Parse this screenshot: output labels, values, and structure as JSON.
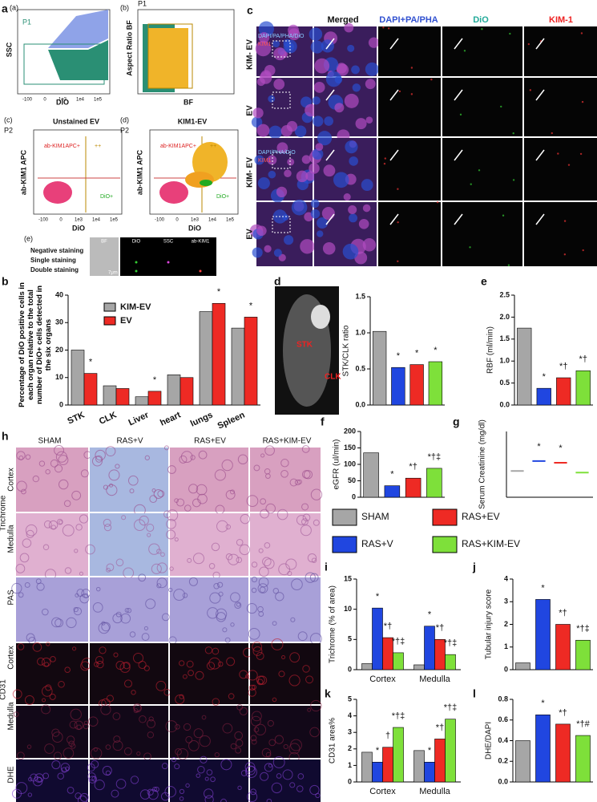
{
  "figure": {
    "panel_letters": [
      "a",
      "b",
      "c",
      "d",
      "e",
      "f",
      "g",
      "h",
      "i",
      "j",
      "k",
      "l"
    ],
    "flow": {
      "sub": [
        "(a)",
        "(b)",
        "(c)",
        "(d)",
        "(e)"
      ],
      "p1": "P1",
      "p2": "P2",
      "ssc": "SSC",
      "dio": "DiO",
      "aspect": "Aspect Ratio BF",
      "bf": "BF",
      "unstained": "Unstained EV",
      "kim1ev": "KIM1-EV",
      "apc": "ab-KIM1 APC",
      "apcpos": "ab-KIM1APC+",
      "dipos": "DiO+",
      "pp": "++",
      "axis_ticks": [
        "-100",
        "0",
        "1e3",
        "1e4",
        "1e5"
      ]
    },
    "staining": {
      "rows": [
        "Negative staining",
        "Single staining",
        "Double staining"
      ],
      "cols": [
        "BF",
        "DiO",
        "SSC",
        "ab-KIM1"
      ],
      "scale": "7μm"
    },
    "panel_c": {
      "cols": [
        "Merged",
        "DAPI+PA/PHA",
        "DiO",
        "KIM-1"
      ],
      "rows": [
        "KIM- EV",
        "EV",
        "KIM- EV",
        "EV"
      ],
      "inset1": "DAPI/PA/PHA/DiO",
      "inset2": "DAPI/PHA/DiO",
      "inset_kim": "KIM1"
    },
    "panel_d_image": {
      "stk": "STK",
      "clk": "CLK"
    },
    "panel_h": {
      "cols": [
        "SHAM",
        "RAS+V",
        "RAS+EV",
        "RAS+KIM-EV"
      ],
      "rows": [
        "Cortex",
        "Medulla",
        "PAS",
        "Cortex",
        "Medulla",
        "DHE"
      ],
      "groups": [
        "Trichrome",
        "CD31"
      ]
    },
    "legend": [
      {
        "name": "SHAM",
        "color": "#a6a6a6"
      },
      {
        "name": "RAS+EV",
        "color": "#ee2a24"
      },
      {
        "name": "RAS+V",
        "color": "#2046e0"
      },
      {
        "name": "RAS+KIM-EV",
        "color": "#7ee03a"
      }
    ]
  },
  "chart_data": [
    {
      "type": "grouped_bar",
      "y_label": "Percentage of DiO positive cells in each organ relative to the total number of DiO+ cells detected in the six organs",
      "categories": [
        "STK",
        "CLK",
        "Liver",
        "heart",
        "lungs",
        "Spleen"
      ],
      "series": [
        {
          "name": "KIM-EV",
          "color": "#a6a6a6",
          "values": [
            20,
            7,
            3,
            11,
            34,
            28
          ]
        },
        {
          "name": "EV",
          "color": "#ee2a24",
          "values": [
            11.5,
            6,
            5,
            10,
            37,
            32
          ],
          "annotations": [
            "*",
            null,
            "*",
            null,
            "*",
            "*"
          ]
        }
      ],
      "ylim": [
        0,
        40
      ],
      "yticks": [
        0,
        10,
        20,
        30,
        40
      ]
    },
    {
      "type": "bar",
      "y_label": "STK/CLK ratio",
      "values": [
        1.02,
        0.52,
        0.56,
        0.6
      ],
      "colors": [
        "#a6a6a6",
        "#2046e0",
        "#ee2a24",
        "#7ee03a"
      ],
      "annotations": [
        null,
        "*",
        "*",
        "*"
      ],
      "ylim": [
        0,
        1.5
      ],
      "yticks": [
        {
          "value": 0,
          "label": "0.0"
        },
        {
          "value": 0.5,
          "label": "0.5"
        },
        {
          "value": 1,
          "label": "1.0"
        },
        {
          "value": 1.5,
          "label": "1.5"
        }
      ]
    },
    {
      "type": "bar",
      "y_label": "RBF (ml/min)",
      "values": [
        1.75,
        0.38,
        0.62,
        0.78
      ],
      "colors": [
        "#a6a6a6",
        "#2046e0",
        "#ee2a24",
        "#7ee03a"
      ],
      "annotations": [
        null,
        "*",
        "*†",
        "*†"
      ],
      "ylim": [
        0,
        2.5
      ],
      "yticks": [
        {
          "value": 0,
          "label": "0.0"
        },
        {
          "value": 0.5,
          "label": "0.5"
        },
        {
          "value": 1,
          "label": "1.0"
        },
        {
          "value": 1.5,
          "label": "1.5"
        },
        {
          "value": 2,
          "label": "2.0"
        },
        {
          "value": 2.5,
          "label": "2.5"
        }
      ]
    },
    {
      "type": "bar",
      "y_label": "eGFR (ul/min)",
      "values": [
        135,
        35,
        58,
        88
      ],
      "colors": [
        "#a6a6a6",
        "#2046e0",
        "#ee2a24",
        "#7ee03a"
      ],
      "annotations": [
        null,
        "*",
        "*†",
        "*†‡"
      ],
      "ylim": [
        0,
        200
      ],
      "yticks": [
        0,
        50,
        100,
        150,
        200
      ]
    },
    {
      "type": "dot",
      "y_label": "Serum Creatinine (mg/dl)",
      "values": [
        0.16,
        0.22,
        0.21,
        0.15
      ],
      "colors": [
        "#a6a6a6",
        "#2046e0",
        "#ee2a24",
        "#7ee03a"
      ],
      "annotations": [
        null,
        "*",
        "*",
        null
      ],
      "ylim": [
        0,
        0.4
      ]
    },
    {
      "type": "grouped_bar",
      "y_label": "Trichrome (% of area)",
      "categories": [
        "Cortex",
        "Medulla"
      ],
      "series": [
        {
          "name": "SHAM",
          "color": "#a6a6a6",
          "values": [
            1,
            0.8
          ]
        },
        {
          "name": "RAS+V",
          "color": "#2046e0",
          "values": [
            10.2,
            7.2
          ],
          "annotations": [
            "*",
            "*"
          ]
        },
        {
          "name": "RAS+EV",
          "color": "#ee2a24",
          "values": [
            5.3,
            5
          ],
          "annotations": [
            "*†",
            "*†"
          ]
        },
        {
          "name": "RAS+KIM-EV",
          "color": "#7ee03a",
          "values": [
            2.8,
            2.5
          ],
          "annotations": [
            "*†‡",
            "*†‡"
          ]
        }
      ],
      "ylim": [
        0,
        15
      ],
      "yticks": [
        0,
        5,
        10,
        15
      ]
    },
    {
      "type": "bar",
      "y_label": "Tubular injury score",
      "values": [
        0.3,
        3.1,
        2.0,
        1.3
      ],
      "colors": [
        "#a6a6a6",
        "#2046e0",
        "#ee2a24",
        "#7ee03a"
      ],
      "annotations": [
        null,
        "*",
        "*†",
        "*†‡"
      ],
      "ylim": [
        0,
        4
      ],
      "yticks": [
        0,
        1,
        2,
        3,
        4
      ]
    },
    {
      "type": "grouped_bar",
      "y_label": "CD31 area%",
      "categories": [
        "Cortex",
        "Medulla"
      ],
      "series": [
        {
          "name": "SHAM",
          "color": "#a6a6a6",
          "values": [
            1.8,
            1.9
          ]
        },
        {
          "name": "RAS+V",
          "color": "#2046e0",
          "values": [
            1.2,
            1.2
          ],
          "annotations": [
            "*",
            "*"
          ]
        },
        {
          "name": "RAS+EV",
          "color": "#ee2a24",
          "values": [
            2.1,
            2.6
          ],
          "annotations": [
            "†",
            "*†"
          ]
        },
        {
          "name": "RAS+KIM-EV",
          "color": "#7ee03a",
          "values": [
            3.3,
            3.8
          ],
          "annotations": [
            "*†‡",
            "*†‡"
          ]
        }
      ],
      "ylim": [
        0,
        5
      ],
      "yticks": [
        0,
        1,
        2,
        3,
        4,
        5
      ]
    },
    {
      "type": "bar",
      "y_label": "DHE/DAPI",
      "values": [
        0.4,
        0.65,
        0.56,
        0.45
      ],
      "colors": [
        "#a6a6a6",
        "#2046e0",
        "#ee2a24",
        "#7ee03a"
      ],
      "annotations": [
        null,
        "*",
        "*†",
        "*†#"
      ],
      "ylim": [
        0,
        0.8
      ],
      "yticks": [
        {
          "value": 0,
          "label": "0.0"
        },
        {
          "value": 0.2,
          "label": "0.2"
        },
        {
          "value": 0.4,
          "label": "0.4"
        },
        {
          "value": 0.6,
          "label": "0.6"
        },
        {
          "value": 0.8,
          "label": "0.8"
        }
      ]
    }
  ]
}
